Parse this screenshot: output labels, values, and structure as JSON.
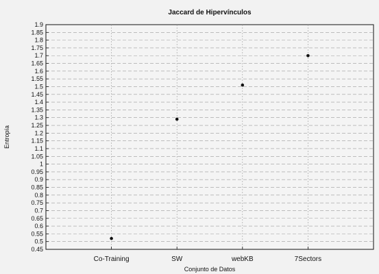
{
  "chart_data": {
    "type": "scatter",
    "title": "Jaccard de Hipervínculos",
    "xlabel": "Conjunto de Datos",
    "ylabel": "Entropía",
    "categories": [
      "Co-Training",
      "SW",
      "webKB",
      "7Sectors"
    ],
    "values": [
      0.52,
      1.29,
      1.51,
      1.7
    ],
    "ylim": [
      0.45,
      1.9
    ],
    "yticks": [
      "0.45",
      "0.5",
      "0.55",
      "0.6",
      "0.65",
      "0.7",
      "0.75",
      "0.8",
      "0.85",
      "0.9",
      "0.95",
      "1",
      "1.05",
      "1.1",
      "1.15",
      "1.2",
      "1.25",
      "1.3",
      "1.35",
      "1.4",
      "1.45",
      "1.5",
      "1.55",
      "1.6",
      "1.65",
      "1.7",
      "1.75",
      "1.8",
      "1.85",
      "1.9"
    ],
    "grid": true,
    "legend": "none",
    "colors": {
      "marker": "#111111",
      "grid": "#9a9a9a",
      "axes": "#111111",
      "background": "#f2f2f2"
    }
  }
}
